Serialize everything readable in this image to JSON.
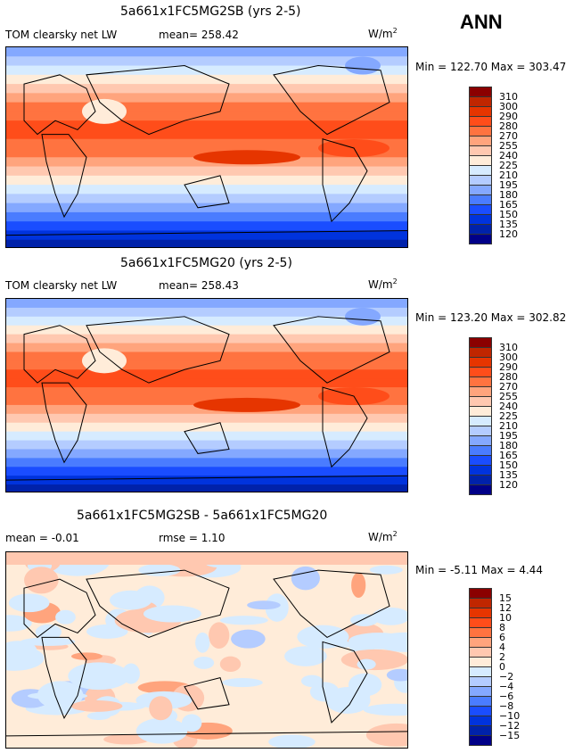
{
  "season": "ANN",
  "panels": [
    {
      "title": "5a661x1FC5MG2SB (yrs 2-5)",
      "variable": "TOM clearsky net LW",
      "mean": "mean= 258.42",
      "units": "W/m",
      "units_sup": "2",
      "minmax": "Min = 122.70 Max = 303.47",
      "levels": [
        "310",
        "300",
        "290",
        "280",
        "270",
        "255",
        "240",
        "225",
        "210",
        "195",
        "180",
        "165",
        "150",
        "135",
        "120"
      ],
      "kind": "abs"
    },
    {
      "title": "5a661x1FC5MG20 (yrs 2-5)",
      "variable": "TOM clearsky net LW",
      "mean": "mean= 258.43",
      "units": "W/m",
      "units_sup": "2",
      "minmax": "Min = 123.20 Max = 302.82",
      "levels": [
        "310",
        "300",
        "290",
        "280",
        "270",
        "255",
        "240",
        "225",
        "210",
        "195",
        "180",
        "165",
        "150",
        "135",
        "120"
      ],
      "kind": "abs"
    },
    {
      "title": "5a661x1FC5MG2SB - 5a661x1FC5MG20",
      "mean": "mean =  -0.01",
      "rmse": "rmse =   1.10",
      "units": "W/m",
      "units_sup": "2",
      "minmax": "Min =  -5.11 Max =   4.44",
      "levels": [
        "15",
        "12",
        "10",
        "8",
        "6",
        "4",
        "2",
        "0",
        "−2",
        "−4",
        "−6",
        "−8",
        "−10",
        "−12",
        "−15"
      ],
      "kind": "diff"
    }
  ],
  "colors": [
    "#8b0000",
    "#c02600",
    "#e63500",
    "#ff4d1a",
    "#ff7340",
    "#ffa47d",
    "#ffc8b0",
    "#ffecd9",
    "#d6ebff",
    "#b4ccff",
    "#84a8ff",
    "#4a7cff",
    "#1a4dff",
    "#0033dd",
    "#0022aa",
    "#000088"
  ]
}
